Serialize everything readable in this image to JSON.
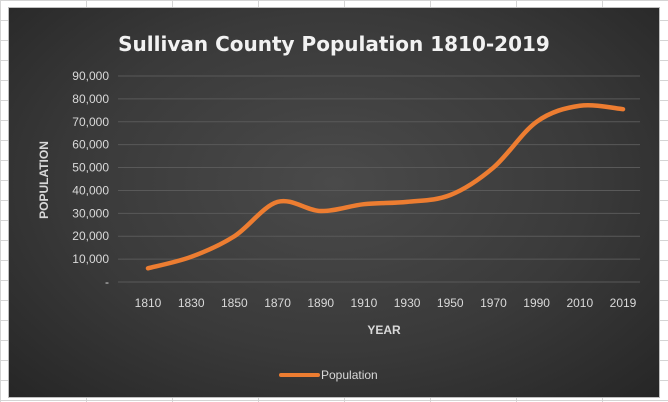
{
  "chart_data": {
    "type": "line",
    "title": "Sullivan County Population 1810-2019",
    "xlabel": "YEAR",
    "ylabel": "POPULATION",
    "categories": [
      "1810",
      "1830",
      "1850",
      "1870",
      "1890",
      "1910",
      "1930",
      "1950",
      "1970",
      "1990",
      "2010",
      "2019"
    ],
    "series": [
      {
        "name": "Population",
        "color": "#ed7d31",
        "values": [
          6000,
          11000,
          20000,
          35000,
          31000,
          34000,
          35000,
          38000,
          50000,
          70000,
          77000,
          75500
        ]
      }
    ],
    "ylim": [
      0,
      90000
    ],
    "yticks": [
      0,
      10000,
      20000,
      30000,
      40000,
      50000,
      60000,
      70000,
      80000,
      90000
    ],
    "ytick_labels": [
      "-",
      "10,000",
      "20,000",
      "30,000",
      "40,000",
      "50,000",
      "60,000",
      "70,000",
      "80,000",
      "90,000"
    ],
    "grid": true,
    "legend_position": "bottom",
    "colors": {
      "background": "#404040",
      "gridline": "#595959",
      "text": "#d9d9d9",
      "title": "#f2f2f2"
    }
  }
}
